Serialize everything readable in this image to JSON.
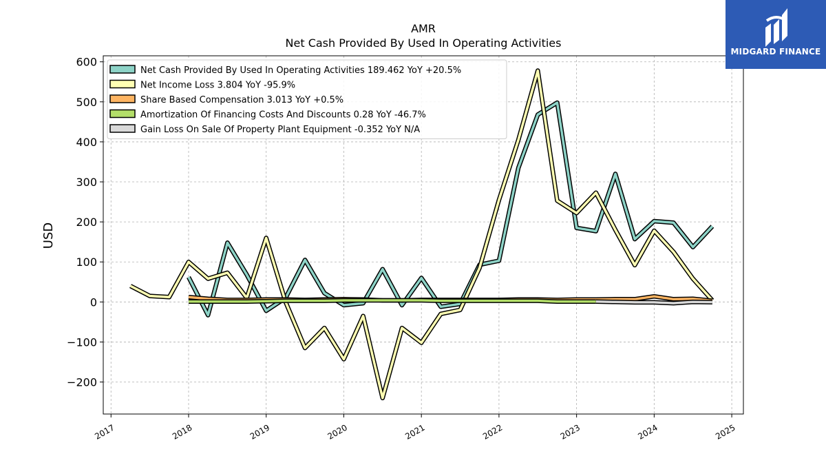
{
  "logo": {
    "text": "MIDGARD FINANCE"
  },
  "chart_data": {
    "type": "line",
    "title": "AMR",
    "subtitle": "Net Cash Provided By Used In Operating Activities",
    "ylabel": "USD",
    "xlabel": "",
    "xlim": [
      2016.9,
      2025.15
    ],
    "ylim": [
      -280,
      615
    ],
    "yticks": [
      -200,
      -100,
      0,
      100,
      200,
      300,
      400,
      500,
      600
    ],
    "yticklabels": [
      "−200",
      "−100",
      "0",
      "100",
      "200",
      "300",
      "400",
      "500",
      "600"
    ],
    "xticks": [
      2017,
      2018,
      2019,
      2020,
      2021,
      2022,
      2023,
      2024,
      2025
    ],
    "xticklabels": [
      "2017",
      "2018",
      "2019",
      "2020",
      "2021",
      "2022",
      "2023",
      "2024",
      "2025"
    ],
    "grid": true,
    "legend_position": "top-left",
    "series": [
      {
        "name": "Net Cash Provided By Used In Operating Activities",
        "legend": "Net Cash Provided By Used In Operating Activities  189.462 YoY +20.5%",
        "color": "#8dd3c7",
        "points": [
          [
            2018.0,
            62
          ],
          [
            2018.25,
            -33
          ],
          [
            2018.5,
            148
          ],
          [
            2018.75,
            68
          ],
          [
            2019.0,
            -22
          ],
          [
            2019.25,
            10
          ],
          [
            2019.5,
            105
          ],
          [
            2019.75,
            22
          ],
          [
            2020.0,
            -8
          ],
          [
            2020.25,
            -3
          ],
          [
            2020.5,
            82
          ],
          [
            2020.75,
            -8
          ],
          [
            2021.0,
            60
          ],
          [
            2021.25,
            -12
          ],
          [
            2021.5,
            -5
          ],
          [
            2021.75,
            93
          ],
          [
            2022.0,
            103
          ],
          [
            2022.25,
            335
          ],
          [
            2022.5,
            468
          ],
          [
            2022.75,
            498
          ],
          [
            2023.0,
            185
          ],
          [
            2023.25,
            177
          ],
          [
            2023.5,
            320
          ],
          [
            2023.75,
            157
          ],
          [
            2024.0,
            202
          ],
          [
            2024.25,
            198
          ],
          [
            2024.5,
            137
          ],
          [
            2024.75,
            189
          ]
        ]
      },
      {
        "name": "Net Income Loss",
        "legend": "Net Income Loss  3.804 YoY -95.9%",
        "color": "#ffffb3",
        "points": [
          [
            2017.25,
            40
          ],
          [
            2017.5,
            15
          ],
          [
            2017.75,
            12
          ],
          [
            2018.0,
            100
          ],
          [
            2018.25,
            58
          ],
          [
            2018.5,
            73
          ],
          [
            2018.75,
            10
          ],
          [
            2019.0,
            160
          ],
          [
            2019.25,
            0
          ],
          [
            2019.5,
            -115
          ],
          [
            2019.75,
            -65
          ],
          [
            2020.0,
            -143
          ],
          [
            2020.25,
            -35
          ],
          [
            2020.5,
            -240
          ],
          [
            2020.75,
            -65
          ],
          [
            2021.0,
            -102
          ],
          [
            2021.25,
            -30
          ],
          [
            2021.5,
            -20
          ],
          [
            2021.75,
            85
          ],
          [
            2022.0,
            255
          ],
          [
            2022.25,
            405
          ],
          [
            2022.5,
            578
          ],
          [
            2022.75,
            253
          ],
          [
            2023.0,
            222
          ],
          [
            2023.25,
            273
          ],
          [
            2023.5,
            180
          ],
          [
            2023.75,
            92
          ],
          [
            2024.0,
            178
          ],
          [
            2024.25,
            125
          ],
          [
            2024.5,
            58
          ],
          [
            2024.75,
            4
          ]
        ]
      },
      {
        "name": "Share Based Compensation",
        "legend": "Share Based Compensation  3.013 YoY +0.5%",
        "color": "#fdb462",
        "points": [
          [
            2018.0,
            12
          ],
          [
            2018.25,
            8
          ],
          [
            2018.5,
            5
          ],
          [
            2018.75,
            5
          ],
          [
            2019.0,
            6
          ],
          [
            2019.25,
            6
          ],
          [
            2019.5,
            5
          ],
          [
            2019.75,
            6
          ],
          [
            2020.0,
            7
          ],
          [
            2020.25,
            6
          ],
          [
            2020.5,
            4
          ],
          [
            2020.75,
            4
          ],
          [
            2021.0,
            5
          ],
          [
            2021.25,
            5
          ],
          [
            2021.5,
            5
          ],
          [
            2021.75,
            5
          ],
          [
            2022.0,
            5
          ],
          [
            2022.25,
            6
          ],
          [
            2022.5,
            6
          ],
          [
            2022.75,
            5
          ],
          [
            2023.0,
            6
          ],
          [
            2023.25,
            6
          ],
          [
            2023.5,
            7
          ],
          [
            2023.75,
            7
          ],
          [
            2024.0,
            14
          ],
          [
            2024.25,
            7
          ],
          [
            2024.5,
            8
          ],
          [
            2024.75,
            3
          ]
        ]
      },
      {
        "name": "Amortization Of Financing Costs And Discounts",
        "legend": "Amortization Of Financing Costs And Discounts  0.28 YoY -46.7%",
        "color": "#b3de69",
        "points": [
          [
            2018.0,
            1
          ],
          [
            2018.25,
            1
          ],
          [
            2018.5,
            1
          ],
          [
            2018.75,
            1
          ],
          [
            2019.0,
            2
          ],
          [
            2019.25,
            3
          ],
          [
            2019.5,
            3
          ],
          [
            2019.75,
            3
          ],
          [
            2020.0,
            4
          ],
          [
            2020.25,
            4
          ],
          [
            2020.5,
            4
          ],
          [
            2020.75,
            4
          ],
          [
            2021.0,
            4
          ],
          [
            2021.25,
            3
          ],
          [
            2021.5,
            3
          ],
          [
            2021.75,
            3
          ],
          [
            2022.0,
            3
          ],
          [
            2022.25,
            3
          ],
          [
            2022.5,
            3
          ],
          [
            2022.75,
            1
          ],
          [
            2023.0,
            1
          ],
          [
            2023.25,
            1
          ]
        ]
      },
      {
        "name": "Gain Loss On Sale Of Property Plant Equipment",
        "legend": "Gain Loss On Sale Of Property Plant Equipment  -0.352 YoY N/A",
        "color": "#d9d9d9",
        "points": [
          [
            2023.25,
            1
          ],
          [
            2023.5,
            0
          ],
          [
            2023.75,
            -1
          ],
          [
            2024.0,
            -1
          ],
          [
            2024.25,
            -3
          ],
          [
            2024.5,
            0
          ],
          [
            2024.75,
            -0.4
          ]
        ]
      }
    ]
  }
}
